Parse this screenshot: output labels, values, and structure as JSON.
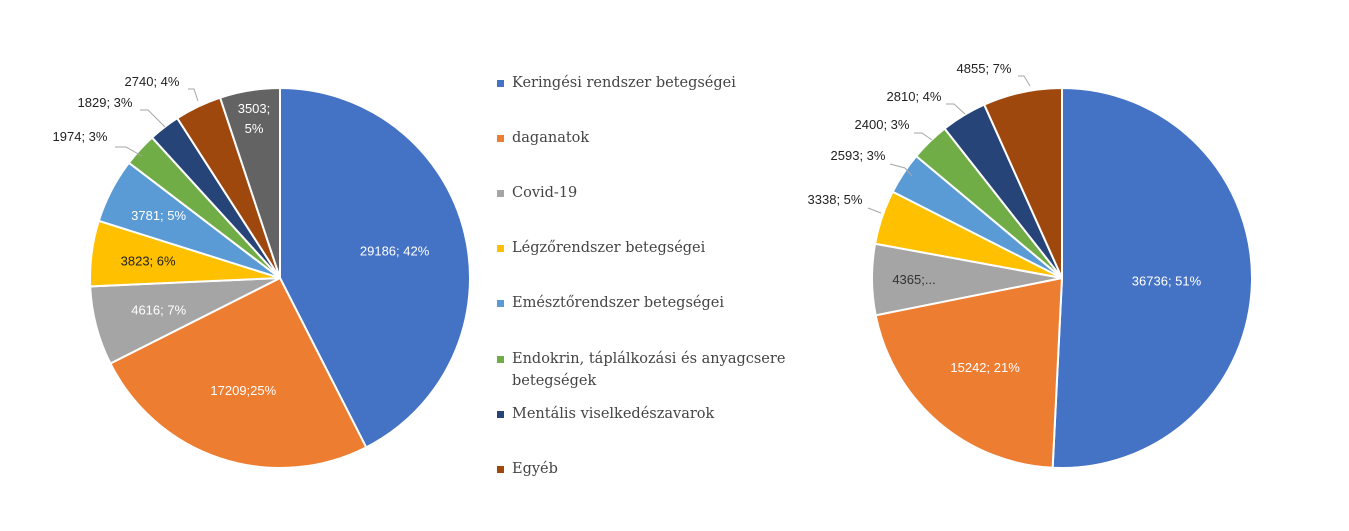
{
  "colors": {
    "blue": "#4472C4",
    "orange": "#ED7D31",
    "gray": "#A5A5A5",
    "yellow": "#FFC000",
    "lightblue": "#5B9BD5",
    "green": "#70AD47",
    "navy": "#264478",
    "brown": "#9E480E",
    "darkgray": "#636363"
  },
  "legend": {
    "items": [
      {
        "label": "Keringési rendszer betegségei",
        "color": "#4472C4"
      },
      {
        "label": "daganatok",
        "color": "#ED7D31"
      },
      {
        "label": "Covid-19",
        "color": "#A5A5A5"
      },
      {
        "label": "Légzőrendszer betegségei",
        "color": "#FFC000"
      },
      {
        "label": "Emésztőrendszer betegségei",
        "color": "#5B9BD5"
      },
      {
        "label": "Endokrin, táplálkozási és anyagcsere betegségek",
        "color": "#70AD47"
      },
      {
        "label": "Mentális viselkedészavarok",
        "color": "#264478"
      },
      {
        "label": "Egyéb",
        "color": "#9E480E"
      }
    ]
  },
  "chart_data": [
    {
      "type": "pie",
      "slices": [
        {
          "value": 29186,
          "percent": 42,
          "color": "#4472C4",
          "label": "29186; 42%"
        },
        {
          "value": 17209,
          "percent": 25,
          "color": "#ED7D31",
          "label": "17209;25%"
        },
        {
          "value": 4616,
          "percent": 7,
          "color": "#A5A5A5",
          "label": "4616; 7%"
        },
        {
          "value": 3823,
          "percent": 6,
          "color": "#FFC000",
          "label": "3823; 6%"
        },
        {
          "value": 3781,
          "percent": 5,
          "color": "#5B9BD5",
          "label": "3781; 5%"
        },
        {
          "value": 1974,
          "percent": 3,
          "color": "#70AD47",
          "label": "1974; 3%"
        },
        {
          "value": 1829,
          "percent": 3,
          "color": "#264478",
          "label": "1829; 3%"
        },
        {
          "value": 2740,
          "percent": 4,
          "color": "#9E480E",
          "label": "2740; 4%"
        },
        {
          "value": 3503,
          "percent": 5,
          "color": "#636363",
          "label_lines": [
            "3503;",
            "5%"
          ]
        }
      ]
    },
    {
      "type": "pie",
      "slices": [
        {
          "value": 36736,
          "percent": 51,
          "color": "#4472C4",
          "label": "36736; 51%"
        },
        {
          "value": 15242,
          "percent": 21,
          "color": "#ED7D31",
          "label": "15242; 21%"
        },
        {
          "value": 4365,
          "color": "#A5A5A5",
          "label": "4365;..."
        },
        {
          "value": 3338,
          "percent": 5,
          "color": "#FFC000",
          "label": "3338; 5%"
        },
        {
          "value": 2593,
          "percent": 3,
          "color": "#5B9BD5",
          "label": "2593; 3%"
        },
        {
          "value": 2400,
          "percent": 3,
          "color": "#70AD47",
          "label": "2400; 3%"
        },
        {
          "value": 2810,
          "percent": 4,
          "color": "#264478",
          "label": "2810; 4%"
        },
        {
          "value": 4855,
          "percent": 7,
          "color": "#9E480E",
          "label": "4855; 7%"
        }
      ]
    }
  ]
}
